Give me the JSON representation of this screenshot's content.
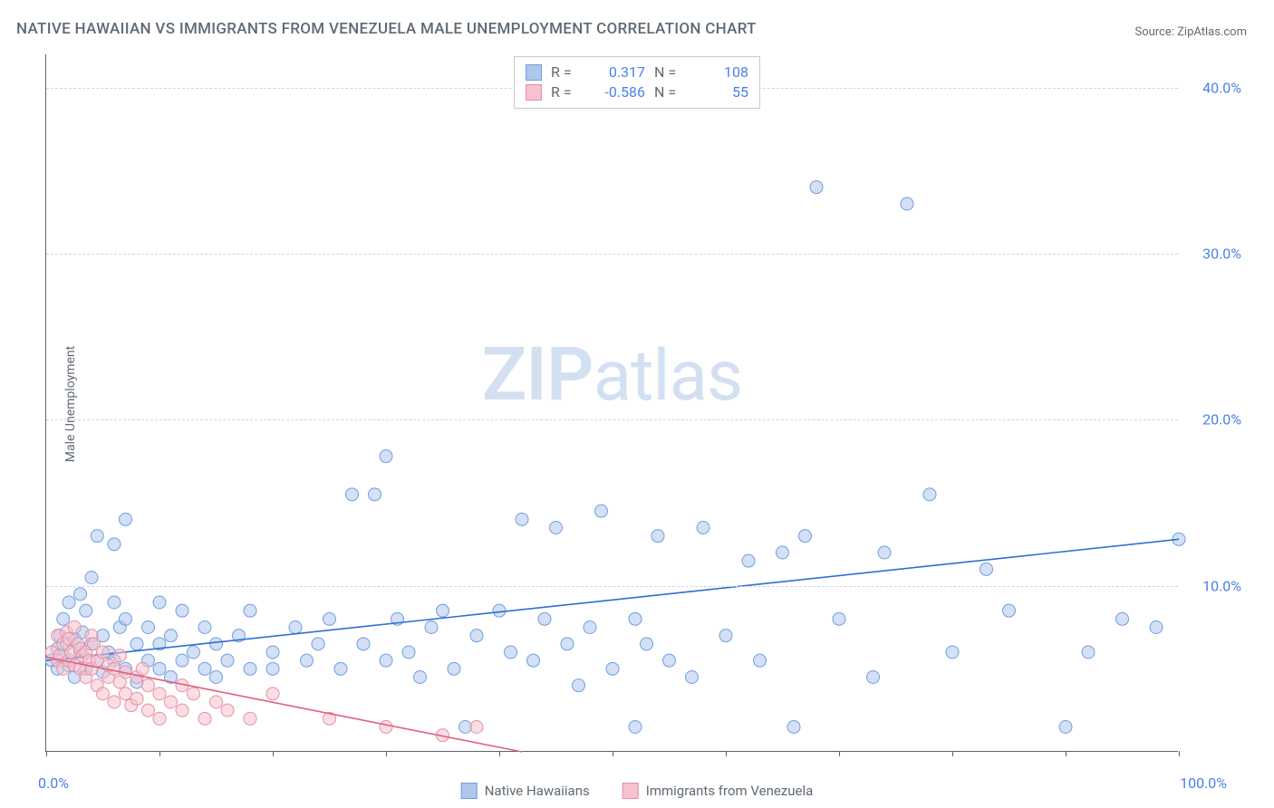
{
  "title": "NATIVE HAWAIIAN VS IMMIGRANTS FROM VENEZUELA MALE UNEMPLOYMENT CORRELATION CHART",
  "source": "Source: ZipAtlas.com",
  "yaxis_label": "Male Unemployment",
  "watermark_bold": "ZIP",
  "watermark_light": "atlas",
  "chart": {
    "type": "scatter",
    "background_color": "#ffffff",
    "grid_color": "#d0d4d8",
    "axis_color": "#5a6470",
    "text_color": "#606a74",
    "value_color": "#4a80e8",
    "xlim": [
      0,
      100
    ],
    "ylim": [
      0,
      42
    ],
    "xtick_positions": [
      0,
      10,
      20,
      30,
      40,
      50,
      60,
      70,
      80,
      90,
      100
    ],
    "xtick_labels": {
      "0": "0.0%",
      "100": "100.0%"
    },
    "ygrid_positions": [
      10,
      20,
      30,
      40
    ],
    "ytick_labels": {
      "10": "10.0%",
      "20": "20.0%",
      "30": "30.0%",
      "40": "40.0%"
    },
    "marker_radius": 7,
    "marker_opacity": 0.55,
    "line_width": 1.6,
    "series": [
      {
        "id": "native_hawaiians",
        "label": "Native Hawaiians",
        "color_fill": "#aec7ed",
        "color_stroke": "#6f9fe0",
        "line_color": "#2f6fd0",
        "R": "0.317",
        "N": "108",
        "trend": {
          "x1": 0,
          "y1": 5.5,
          "x2": 100,
          "y2": 12.8
        },
        "points": [
          [
            0.5,
            5.5
          ],
          [
            1,
            6.2
          ],
          [
            1,
            5.0
          ],
          [
            1.2,
            7.0
          ],
          [
            1.5,
            8.0
          ],
          [
            1.5,
            5.8
          ],
          [
            1.8,
            6.5
          ],
          [
            2,
            5.2
          ],
          [
            2,
            9.0
          ],
          [
            2.5,
            6.8
          ],
          [
            2.5,
            4.5
          ],
          [
            3,
            9.5
          ],
          [
            3,
            6.0
          ],
          [
            3.2,
            7.2
          ],
          [
            3.5,
            5.0
          ],
          [
            3.5,
            8.5
          ],
          [
            4,
            6.5
          ],
          [
            4,
            10.5
          ],
          [
            4.5,
            5.5
          ],
          [
            4.5,
            13.0
          ],
          [
            5,
            7.0
          ],
          [
            5,
            4.8
          ],
          [
            5.5,
            6.0
          ],
          [
            6,
            9.0
          ],
          [
            6,
            5.5
          ],
          [
            6,
            12.5
          ],
          [
            6.5,
            7.5
          ],
          [
            7,
            5.0
          ],
          [
            7,
            8.0
          ],
          [
            7,
            14.0
          ],
          [
            8,
            6.5
          ],
          [
            8,
            4.2
          ],
          [
            9,
            5.5
          ],
          [
            9,
            7.5
          ],
          [
            10,
            9.0
          ],
          [
            10,
            5.0
          ],
          [
            10,
            6.5
          ],
          [
            11,
            4.5
          ],
          [
            11,
            7.0
          ],
          [
            12,
            5.5
          ],
          [
            12,
            8.5
          ],
          [
            13,
            6.0
          ],
          [
            14,
            5.0
          ],
          [
            14,
            7.5
          ],
          [
            15,
            4.5
          ],
          [
            15,
            6.5
          ],
          [
            16,
            5.5
          ],
          [
            17,
            7.0
          ],
          [
            18,
            5.0
          ],
          [
            18,
            8.5
          ],
          [
            20,
            6.0
          ],
          [
            20,
            5.0
          ],
          [
            22,
            7.5
          ],
          [
            23,
            5.5
          ],
          [
            24,
            6.5
          ],
          [
            25,
            8.0
          ],
          [
            26,
            5.0
          ],
          [
            27,
            15.5
          ],
          [
            28,
            6.5
          ],
          [
            29,
            15.5
          ],
          [
            30,
            17.8
          ],
          [
            30,
            5.5
          ],
          [
            31,
            8.0
          ],
          [
            32,
            6.0
          ],
          [
            33,
            4.5
          ],
          [
            34,
            7.5
          ],
          [
            35,
            8.5
          ],
          [
            36,
            5.0
          ],
          [
            37,
            1.5
          ],
          [
            38,
            7.0
          ],
          [
            40,
            8.5
          ],
          [
            41,
            6.0
          ],
          [
            42,
            14.0
          ],
          [
            43,
            5.5
          ],
          [
            44,
            8.0
          ],
          [
            45,
            13.5
          ],
          [
            46,
            6.5
          ],
          [
            47,
            4.0
          ],
          [
            48,
            7.5
          ],
          [
            49,
            14.5
          ],
          [
            50,
            5.0
          ],
          [
            52,
            8.0
          ],
          [
            52,
            1.5
          ],
          [
            53,
            6.5
          ],
          [
            54,
            13.0
          ],
          [
            55,
            5.5
          ],
          [
            57,
            4.5
          ],
          [
            58,
            13.5
          ],
          [
            60,
            7.0
          ],
          [
            62,
            11.5
          ],
          [
            63,
            5.5
          ],
          [
            65,
            12.0
          ],
          [
            66,
            1.5
          ],
          [
            67,
            13.0
          ],
          [
            68,
            34.0
          ],
          [
            70,
            8.0
          ],
          [
            73,
            4.5
          ],
          [
            74,
            12.0
          ],
          [
            76,
            33.0
          ],
          [
            78,
            15.5
          ],
          [
            80,
            6.0
          ],
          [
            83,
            11.0
          ],
          [
            85,
            8.5
          ],
          [
            90,
            1.5
          ],
          [
            92,
            6.0
          ],
          [
            95,
            8.0
          ],
          [
            98,
            7.5
          ],
          [
            100,
            12.8
          ]
        ]
      },
      {
        "id": "immigrants_venezuela",
        "label": "Immigrants from Venezuela",
        "color_fill": "#f5c2cd",
        "color_stroke": "#e88fa5",
        "line_color": "#e0607f",
        "R": "-0.586",
        "N": "55",
        "trend": {
          "x1": 0,
          "y1": 5.7,
          "x2": 42,
          "y2": 0
        },
        "points": [
          [
            0.5,
            6.0
          ],
          [
            1,
            5.5
          ],
          [
            1,
            7.0
          ],
          [
            1.2,
            5.8
          ],
          [
            1.5,
            6.5
          ],
          [
            1.5,
            5.0
          ],
          [
            1.8,
            7.2
          ],
          [
            2,
            5.5
          ],
          [
            2,
            6.8
          ],
          [
            2.2,
            6.0
          ],
          [
            2.5,
            5.2
          ],
          [
            2.5,
            7.5
          ],
          [
            2.8,
            6.5
          ],
          [
            3,
            5.0
          ],
          [
            3,
            6.2
          ],
          [
            3.2,
            5.8
          ],
          [
            3.5,
            4.5
          ],
          [
            3.5,
            6.0
          ],
          [
            3.8,
            5.5
          ],
          [
            4,
            7.0
          ],
          [
            4,
            5.0
          ],
          [
            4.2,
            6.5
          ],
          [
            4.5,
            4.0
          ],
          [
            4.5,
            5.5
          ],
          [
            5,
            3.5
          ],
          [
            5,
            6.0
          ],
          [
            5.5,
            4.5
          ],
          [
            5.5,
            5.2
          ],
          [
            6,
            3.0
          ],
          [
            6,
            5.0
          ],
          [
            6.5,
            4.2
          ],
          [
            6.5,
            5.8
          ],
          [
            7,
            3.5
          ],
          [
            7,
            4.8
          ],
          [
            7.5,
            2.8
          ],
          [
            8,
            4.5
          ],
          [
            8,
            3.2
          ],
          [
            8.5,
            5.0
          ],
          [
            9,
            2.5
          ],
          [
            9,
            4.0
          ],
          [
            10,
            3.5
          ],
          [
            10,
            2.0
          ],
          [
            11,
            3.0
          ],
          [
            12,
            4.0
          ],
          [
            12,
            2.5
          ],
          [
            13,
            3.5
          ],
          [
            14,
            2.0
          ],
          [
            15,
            3.0
          ],
          [
            16,
            2.5
          ],
          [
            18,
            2.0
          ],
          [
            20,
            3.5
          ],
          [
            25,
            2.0
          ],
          [
            30,
            1.5
          ],
          [
            35,
            1.0
          ],
          [
            38,
            1.5
          ]
        ]
      }
    ]
  },
  "legend_top": {
    "r_label": "R =",
    "n_label": "N ="
  }
}
